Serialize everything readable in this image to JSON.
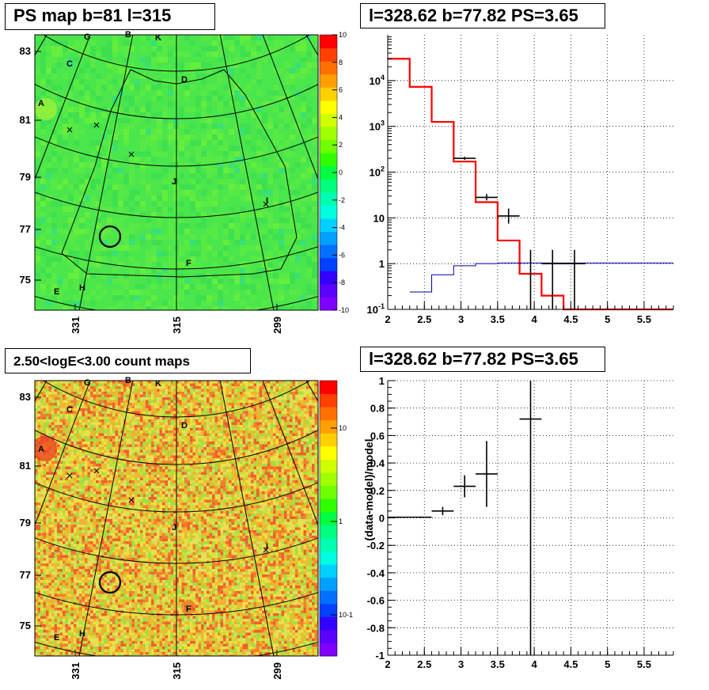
{
  "panels": {
    "ps_map_title": "PS map b=81 l=315",
    "spectrum_title": "l=328.62 b=77.82 PS=3.65",
    "count_map_title": "2.50<logE<3.00 count maps",
    "residual_title": "l=328.62 b=77.82 PS=3.65"
  },
  "colors": {
    "data": "#000000",
    "model_total": "#ff0000",
    "model_component": "#0000aa",
    "grid": "#000000"
  },
  "sky_maps": {
    "b_tick_labels": [
      "83",
      "81",
      "79",
      "77",
      "75"
    ],
    "l_tick_labels": [
      "331",
      "315",
      "299"
    ],
    "source_labels": [
      "G",
      "B",
      "K",
      "C",
      "A",
      "D",
      "J",
      "I",
      "F",
      "H",
      "E"
    ],
    "ps_colorbar": {
      "tick_labels": [
        "10",
        "8",
        "6",
        "4",
        "2",
        "0",
        "-2",
        "-4",
        "-6",
        "-8",
        "-10"
      ],
      "range": [
        -10,
        10
      ]
    },
    "count_colorbar": {
      "tick_labels": [
        "10",
        "1",
        "10-1"
      ],
      "scale": "log"
    }
  },
  "chart_data": [
    {
      "type": "line",
      "panel": "spectrum",
      "title": "l=328.62 b=77.82 PS=3.65",
      "xlim": [
        2,
        5.9
      ],
      "ylim": [
        0.1,
        100000
      ],
      "y_scale": "log",
      "grid": true,
      "x_tick_labels": [
        "2",
        "2.5",
        "3",
        "3.5",
        "4",
        "4.5",
        "5",
        "5.5"
      ],
      "y_tick_labels": [
        "10^-1",
        "1",
        "10",
        "10^2",
        "10^3",
        "10^4"
      ],
      "series": [
        {
          "role": "model_total_step",
          "color": "#ff0000",
          "edges": [
            2.0,
            2.3,
            2.6,
            2.9,
            3.2,
            3.5,
            3.8,
            4.1,
            4.4,
            5.9
          ],
          "values": [
            30000,
            7300,
            1250,
            170,
            22,
            3.2,
            0.6,
            0.2,
            0.1
          ]
        },
        {
          "role": "model_component_step",
          "color": "#0000aa",
          "edges": [
            2.3,
            2.6,
            2.9,
            3.2,
            3.5,
            5.9
          ],
          "values": [
            0.24,
            0.57,
            0.9,
            1.0,
            1.03
          ]
        },
        {
          "role": "data",
          "color": "#000000",
          "points": [
            {
              "x": 3.05,
              "y": 200,
              "xerr": 0.15,
              "ylo": 185,
              "yhi": 215
            },
            {
              "x": 3.35,
              "y": 28,
              "xerr": 0.15,
              "ylo": 24,
              "yhi": 33
            },
            {
              "x": 3.65,
              "y": 11,
              "xerr": 0.15,
              "ylo": 7.5,
              "yhi": 16
            },
            {
              "x": 3.95,
              "y": 0.1,
              "xerr": 0.0,
              "ylo": 0.1,
              "yhi": 2
            },
            {
              "x": 4.25,
              "y": 1,
              "xerr": 0.15,
              "ylo": 0.1,
              "yhi": 2
            },
            {
              "x": 4.55,
              "y": 1,
              "xerr": 0.15,
              "ylo": 0.1,
              "yhi": 2
            }
          ]
        }
      ]
    },
    {
      "type": "scatter",
      "panel": "residual",
      "title": "l=328.62 b=77.82 PS=3.65",
      "ylabel": "(data-model)/model",
      "xlim": [
        2,
        5.9
      ],
      "ylim": [
        -1,
        1
      ],
      "grid": true,
      "x_tick_labels": [
        "2",
        "2.5",
        "3",
        "3.5",
        "4",
        "4.5",
        "5",
        "5.5"
      ],
      "y_tick_labels": [
        "1",
        "0.8",
        "0.6",
        "0.4",
        "0.2",
        "0",
        "-0.2",
        "-0.4",
        "-0.6",
        "-0.8",
        "-1"
      ],
      "series": [
        {
          "role": "data",
          "color": "#000000",
          "points": [
            {
              "x": 2.15,
              "y": 0.005,
              "xerr": 0.15,
              "yerr": 0.005
            },
            {
              "x": 2.45,
              "y": 0.005,
              "xerr": 0.15,
              "yerr": 0.005
            },
            {
              "x": 2.75,
              "y": 0.05,
              "xerr": 0.15,
              "yerr": 0.03
            },
            {
              "x": 3.05,
              "y": 0.23,
              "xerr": 0.15,
              "yerr": 0.08
            },
            {
              "x": 3.35,
              "y": 0.32,
              "xerr": 0.15,
              "yerr": 0.24
            },
            {
              "x": 3.95,
              "y": 0.72,
              "xerr": 0.15,
              "yerr": 2.0
            }
          ]
        }
      ]
    }
  ]
}
